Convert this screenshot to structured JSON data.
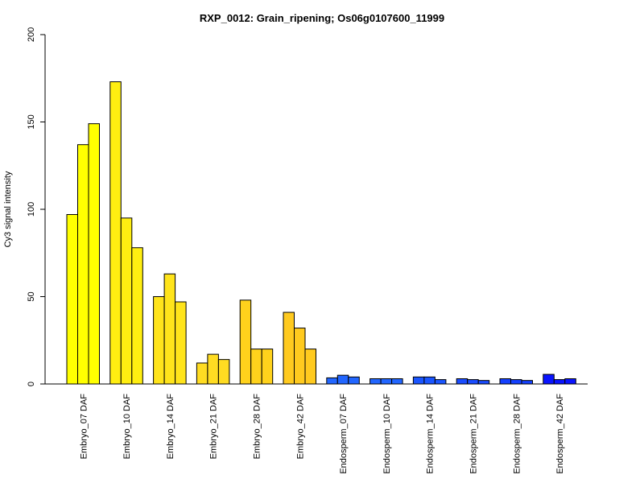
{
  "chart_data": {
    "type": "bar",
    "title": "RXP_0012: Grain_ripening; Os06g0107600_11999",
    "xlabel": "",
    "ylabel": "Cy3 signal intensity",
    "ylim": [
      0,
      200
    ],
    "yticks": [
      0,
      50,
      100,
      150,
      200
    ],
    "grid": false,
    "legend": "none",
    "bars_per_group": 3,
    "categories": [
      "Embryo_07 DAF",
      "Embryo_10 DAF",
      "Embryo_14 DAF",
      "Embryo_21 DAF",
      "Embryo_28 DAF",
      "Embryo_42 DAF",
      "Endosperm_07 DAF",
      "Endosperm_10 DAF",
      "Endosperm_14 DAF",
      "Endosperm_21 DAF",
      "Endosperm_28 DAF",
      "Endosperm_42 DAF"
    ],
    "values": [
      [
        97,
        137,
        149
      ],
      [
        173,
        95,
        78
      ],
      [
        50,
        63,
        47
      ],
      [
        12,
        17,
        14
      ],
      [
        48,
        20,
        20
      ],
      [
        41,
        32,
        20
      ],
      [
        3.5,
        5,
        4
      ],
      [
        3,
        3,
        3
      ],
      [
        4,
        4,
        2.5
      ],
      [
        3,
        2.5,
        2
      ],
      [
        3,
        2.5,
        2
      ],
      [
        5.5,
        2.5,
        3
      ]
    ],
    "colors": [
      "#ffff00",
      "#ffee11",
      "#ffe41b",
      "#ffdc22",
      "#ffd21c",
      "#ffca1f",
      "#2266ff",
      "#2266ff",
      "#1a55ff",
      "#1a4cff",
      "#1440ff",
      "#0a14ff"
    ]
  }
}
